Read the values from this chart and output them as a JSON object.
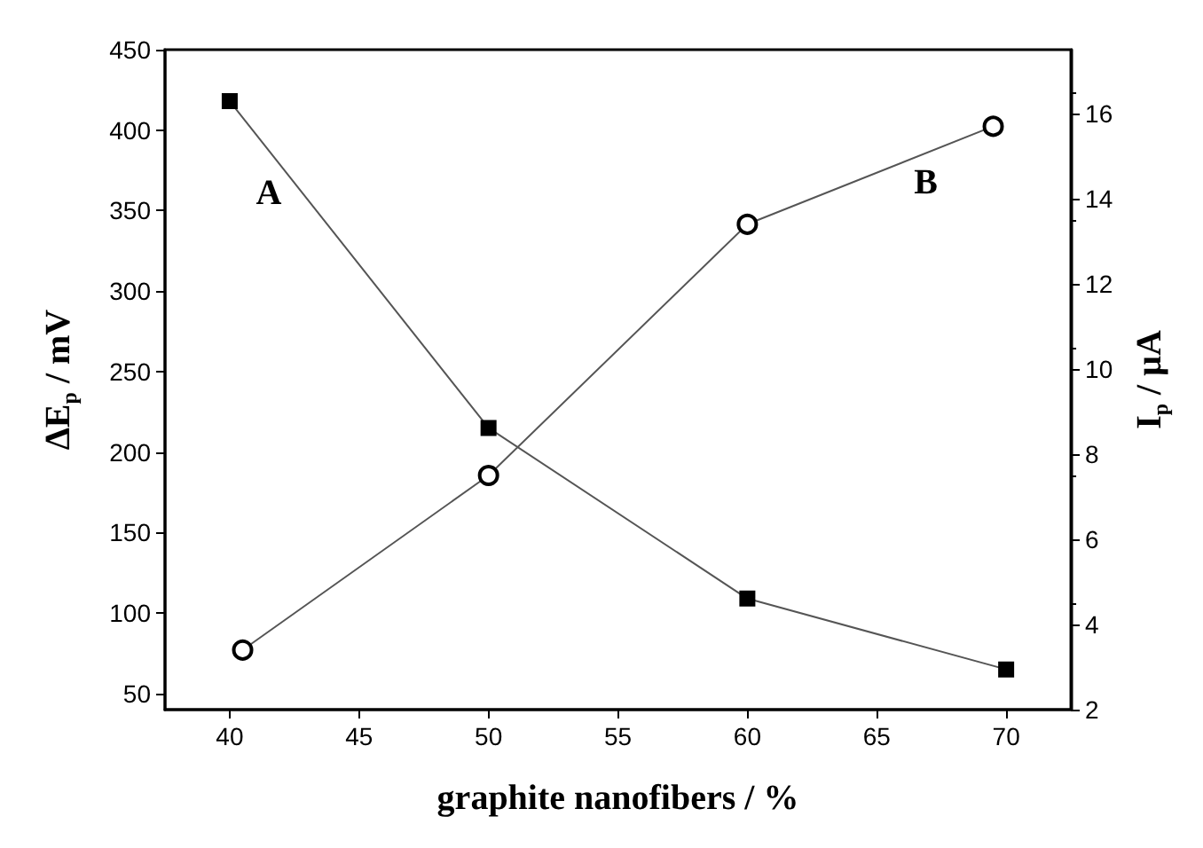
{
  "chart_data": {
    "type": "line",
    "xlabel": "graphite nanofibers / %",
    "ylabel": "ΔE$_{p}$ / mV",
    "y2label": "I$_{p}$ / μA",
    "xlim": [
      37.5,
      72.5
    ],
    "xticks": [
      40,
      45,
      50,
      55,
      60,
      65,
      70
    ],
    "ylim": [
      40,
      450
    ],
    "yticks": [
      50,
      100,
      150,
      200,
      250,
      300,
      350,
      400,
      450
    ],
    "y2lim": [
      2,
      17.5
    ],
    "y2ticks": [
      2,
      4,
      6,
      8,
      10,
      12,
      14,
      16
    ],
    "grid": false,
    "line_style": "solid",
    "series": [
      {
        "color": "#000000",
        "marker": "square",
        "x": [
          40,
          50,
          60,
          70
        ],
        "values": [
          418,
          215,
          109,
          65
        ]
      },
      {
        "color": "#000000",
        "marker": "circle",
        "axis": "y2",
        "x": [
          40.5,
          50,
          60,
          69.5
        ],
        "values": [
          3.4,
          7.5,
          13.4,
          15.7
        ]
      }
    ],
    "annotations": [
      "A",
      "B"
    ]
  }
}
